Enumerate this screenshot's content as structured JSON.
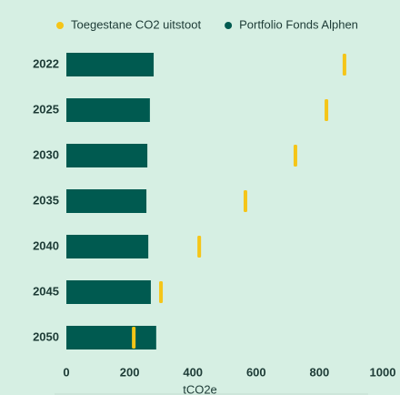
{
  "chart_data": {
    "type": "bar",
    "orientation": "horizontal",
    "x_label": "tCO2e",
    "categories": [
      "2022",
      "2025",
      "2030",
      "2035",
      "2040",
      "2045",
      "2050"
    ],
    "series": [
      {
        "name": "Toegestane CO2 uitstoot",
        "color": "#f5c518",
        "marker": "line",
        "values": [
          879,
          822,
          724,
          566,
          420,
          299,
          213
        ]
      },
      {
        "name": "Portfolio Fonds Alphen",
        "color": "#005a50",
        "marker": "bar",
        "values": [
          276,
          264,
          256,
          253,
          259,
          267,
          284
        ]
      }
    ],
    "xlim": [
      0,
      1000
    ],
    "xticks": [
      0,
      200,
      400,
      600,
      800,
      1000
    ],
    "grid": false,
    "legend": "top"
  }
}
